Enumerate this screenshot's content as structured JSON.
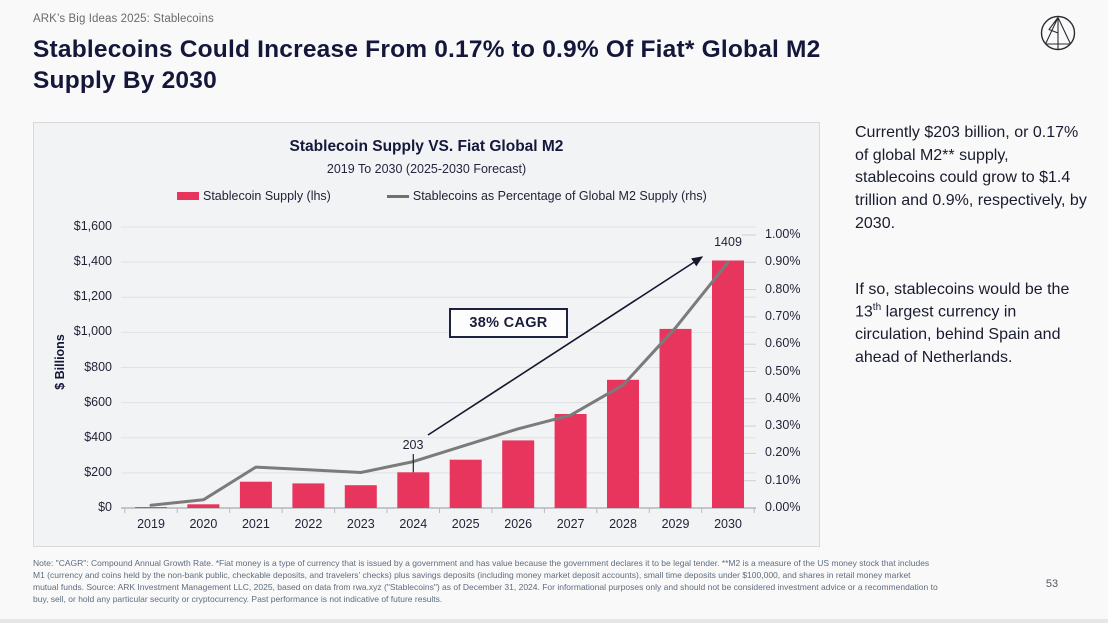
{
  "page": {
    "eyebrow": "ARK’s Big Ideas 2025: Stablecoins",
    "title": "Stablecoins Could Increase From 0.17% to 0.9% Of Fiat* Global M2 Supply By 2030",
    "colors": {
      "accent_red": "#E8355E",
      "line_gray": "#7B7B7B",
      "navy": "#14173A"
    }
  },
  "chart": {
    "title": "Stablecoin Supply VS. Fiat Global M2",
    "subtitle": "2019 To 2030 (2025-2030 Forecast)",
    "y_axis_title": "$ Billions",
    "legend": [
      {
        "label": "Stablecoin Supply (lhs)",
        "swatch": "red-bar"
      },
      {
        "label": "Stablecoins as Percentage of Global M2 Supply (rhs)",
        "swatch": "gray-line"
      }
    ]
  },
  "chart_data": {
    "type": "bar",
    "subtype": "bar+line dual-axis combo",
    "title": "Stablecoin Supply VS. Fiat Global M2",
    "subtitle": "2019 To 2030 (2025-2030 Forecast)",
    "categories": [
      "2019",
      "2020",
      "2021",
      "2022",
      "2023",
      "2024",
      "2025",
      "2026",
      "2027",
      "2028",
      "2029",
      "2030"
    ],
    "series": [
      {
        "name": "Stablecoin Supply (lhs)",
        "type": "bar",
        "axis": "left",
        "unit": "$ billions",
        "color": "#E8355E",
        "values": [
          5,
          21,
          150,
          140,
          130,
          203,
          275,
          385,
          535,
          730,
          1020,
          1409
        ]
      },
      {
        "name": "Stablecoins as Percentage of Global M2 Supply (rhs)",
        "type": "line",
        "axis": "right",
        "unit": "percent",
        "color": "#7B7B7B",
        "values": [
          0.01,
          0.03,
          0.15,
          0.14,
          0.13,
          0.17,
          0.23,
          0.29,
          0.34,
          0.45,
          0.66,
          0.9
        ]
      }
    ],
    "annotations": {
      "bar_2024_label": "203",
      "bar_2030_label": "1409",
      "cagr": "38% CAGR"
    },
    "y_left": {
      "title": "$ Billions",
      "min": 0,
      "max": 1600,
      "step": 200,
      "tick_labels": [
        "$0",
        "$200",
        "$400",
        "$600",
        "$800",
        "$1,000",
        "$1,200",
        "$1,400",
        "$1,600"
      ]
    },
    "y_right": {
      "min": 0,
      "max": 1.0,
      "step": 0.1,
      "tick_labels": [
        "0.00%",
        "0.10%",
        "0.20%",
        "0.30%",
        "0.40%",
        "0.50%",
        "0.60%",
        "0.70%",
        "0.80%",
        "0.90%",
        "1.00%"
      ]
    },
    "grid": "horizontal gridlines on",
    "legend_position": "top"
  },
  "sidebar": {
    "para1": "Currently $203 billion, or 0.17% of global M2** supply, stablecoins could grow to $1.4 trillion and 0.9%, respectively, by 2030.",
    "para2_prefix": "If so, stablecoins would be the 13",
    "para2_sup": "th",
    "para2_suffix": " largest currency in circulation, behind Spain and ahead of Netherlands."
  },
  "footer": {
    "note": "Note: \"CAGR\": Compound Annual Growth Rate. *Fiat money is a type of currency that is issued by a government and has value because the government declares it to be legal tender. **M2 is a measure of the US money stock that includes M1 (currency and coins held by the non-bank public, checkable deposits, and travelers’ checks) plus savings deposits (including money market deposit accounts), small time deposits under $100,000, and shares in retail money market mutual funds. Source: ARK Investment Management LLC, 2025, based on data from rwa.xyz (\"Stablecoins\") as of December 31, 2024. For informational purposes only and should not be considered investment advice or a recommendation to buy, sell, or hold any particular security or cryptocurrency. Past performance is not indicative of future results.",
    "page_number": "53"
  }
}
